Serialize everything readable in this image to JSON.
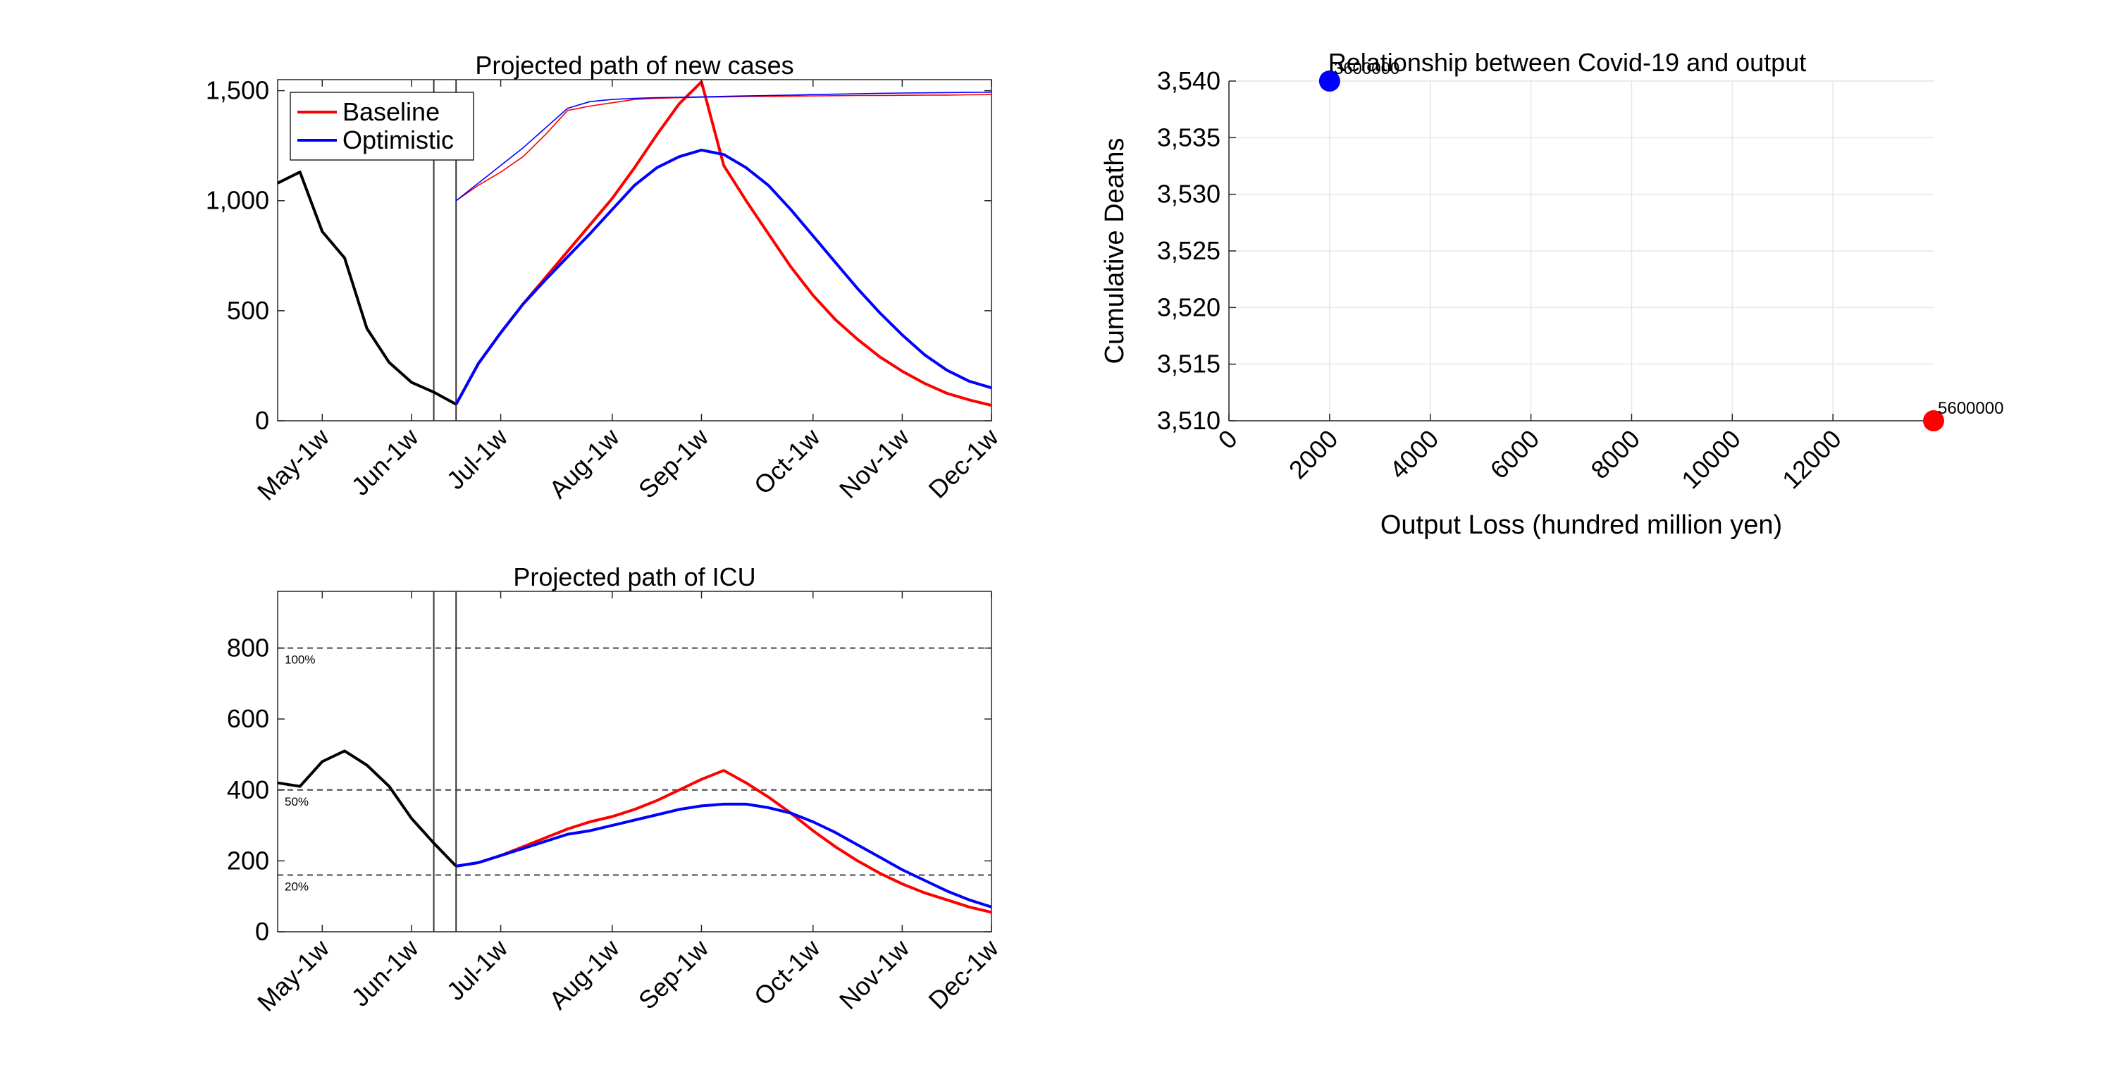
{
  "chart_data": [
    {
      "type": "line",
      "title": "Projected path of new cases",
      "xlabel": "",
      "ylabel": "",
      "x_ticks": [
        "May-1w",
        "Jun-1w",
        "Jul-1w",
        "Aug-1w",
        "Sep-1w",
        "Oct-1w",
        "Nov-1w",
        "Dec-1w"
      ],
      "x_tick_positions": [
        1,
        5,
        9,
        14,
        18,
        23,
        27,
        31
      ],
      "xlim": [
        -1,
        31
      ],
      "ylim": [
        0,
        1550
      ],
      "y_ticks": [
        0,
        500,
        1000,
        1500
      ],
      "y_tick_labels": [
        "0",
        "500",
        "1,000",
        "1,500"
      ],
      "vlines": [
        6,
        7
      ],
      "legend": {
        "placement": "top-left",
        "entries": [
          "Baseline",
          "Optimistic"
        ]
      },
      "series": [
        {
          "key": "observed",
          "color": "#000000",
          "x": [
            -1,
            0,
            1,
            2,
            3,
            4,
            5,
            6,
            7
          ],
          "y": [
            1080,
            1130,
            860,
            740,
            420,
            265,
            175,
            130,
            75
          ]
        },
        {
          "key": "baseline",
          "name": "Baseline",
          "color": "#ff0000",
          "x": [
            7,
            8,
            9,
            10,
            11,
            12,
            13,
            14,
            15,
            16,
            17,
            18,
            19,
            20,
            21,
            22,
            23,
            24,
            25,
            26,
            27,
            28,
            29,
            30,
            31
          ],
          "y": [
            75,
            260,
            400,
            530,
            650,
            770,
            890,
            1010,
            1150,
            1300,
            1440,
            1540,
            1160,
            1000,
            850,
            700,
            570,
            460,
            370,
            290,
            225,
            170,
            125,
            95,
            70
          ]
        },
        {
          "key": "optimistic",
          "name": "Optimistic",
          "color": "#0000ff",
          "x": [
            7,
            8,
            9,
            10,
            11,
            12,
            13,
            14,
            15,
            16,
            17,
            18,
            19,
            20,
            21,
            22,
            23,
            24,
            25,
            26,
            27,
            28,
            29,
            30,
            31
          ],
          "y": [
            75,
            260,
            400,
            530,
            640,
            745,
            850,
            960,
            1070,
            1150,
            1200,
            1230,
            1210,
            1150,
            1070,
            960,
            840,
            720,
            600,
            490,
            390,
            300,
            230,
            180,
            150
          ]
        },
        {
          "key": "baseline_thin",
          "color": "#ff0000",
          "thin": true,
          "x": [
            7,
            8,
            9,
            10,
            11,
            12,
            13,
            14,
            15,
            16,
            17,
            18,
            19,
            20,
            21,
            22,
            23,
            24,
            25,
            26,
            27,
            28,
            29,
            30,
            31
          ],
          "y": [
            1000,
            1070,
            1130,
            1200,
            1300,
            1410,
            1430,
            1445,
            1460,
            1465,
            1468,
            1470,
            1472,
            1473,
            1474,
            1475,
            1476,
            1477,
            1478,
            1478,
            1479,
            1480,
            1480,
            1481,
            1482
          ]
        },
        {
          "key": "optimistic_thin",
          "color": "#0000ff",
          "thin": true,
          "x": [
            7,
            8,
            9,
            10,
            11,
            12,
            13,
            14,
            15,
            16,
            17,
            18,
            19,
            20,
            21,
            22,
            23,
            24,
            25,
            26,
            27,
            28,
            29,
            30,
            31
          ],
          "y": [
            1000,
            1080,
            1160,
            1240,
            1330,
            1420,
            1450,
            1460,
            1465,
            1468,
            1470,
            1472,
            1474,
            1476,
            1478,
            1480,
            1482,
            1484,
            1486,
            1488,
            1489,
            1490,
            1491,
            1492,
            1493
          ]
        }
      ]
    },
    {
      "type": "scatter",
      "title": "Relationship between Covid-19 and output",
      "xlabel": "Output Loss (hundred million yen)",
      "ylabel": "Cumulative Deaths",
      "xlim": [
        0,
        14000
      ],
      "ylim": [
        3510,
        3540
      ],
      "x_ticks": [
        0,
        2000,
        4000,
        6000,
        8000,
        10000,
        12000
      ],
      "y_ticks": [
        3510,
        3515,
        3520,
        3525,
        3530,
        3535,
        3540
      ],
      "y_tick_labels": [
        "3,510",
        "3,515",
        "3,520",
        "3,525",
        "3,530",
        "3,535",
        "3,540"
      ],
      "grid": true,
      "points": [
        {
          "x": 2000,
          "y": 3540,
          "color": "#0000ff",
          "label": "3600000"
        },
        {
          "x": 14000,
          "y": 3510,
          "color": "#ff0000",
          "label": "5600000"
        }
      ]
    },
    {
      "type": "line",
      "title": "Projected path of ICU",
      "xlabel": "",
      "ylabel": "",
      "x_ticks": [
        "May-1w",
        "Jun-1w",
        "Jul-1w",
        "Aug-1w",
        "Sep-1w",
        "Oct-1w",
        "Nov-1w",
        "Dec-1w"
      ],
      "x_tick_positions": [
        1,
        5,
        9,
        14,
        18,
        23,
        27,
        31
      ],
      "xlim": [
        -1,
        31
      ],
      "ylim": [
        0,
        960
      ],
      "y_ticks": [
        0,
        200,
        400,
        600,
        800
      ],
      "y_tick_labels": [
        "0",
        "200",
        "400",
        "600",
        "800"
      ],
      "vlines": [
        6,
        7
      ],
      "hlines": [
        {
          "y": 800,
          "label": "100%"
        },
        {
          "y": 400,
          "label": "50%"
        },
        {
          "y": 160,
          "label": "20%"
        }
      ],
      "series": [
        {
          "key": "observed",
          "color": "#000000",
          "x": [
            -1,
            0,
            1,
            2,
            3,
            4,
            5,
            6,
            7
          ],
          "y": [
            420,
            410,
            480,
            510,
            470,
            410,
            320,
            250,
            185
          ]
        },
        {
          "key": "baseline",
          "color": "#ff0000",
          "x": [
            7,
            8,
            9,
            10,
            11,
            12,
            13,
            14,
            15,
            16,
            17,
            18,
            19,
            20,
            21,
            22,
            23,
            24,
            25,
            26,
            27,
            28,
            29,
            30,
            31
          ],
          "y": [
            185,
            195,
            215,
            240,
            265,
            290,
            310,
            325,
            345,
            370,
            400,
            430,
            455,
            420,
            380,
            335,
            285,
            240,
            200,
            165,
            135,
            110,
            90,
            70,
            55
          ]
        },
        {
          "key": "optimistic",
          "color": "#0000ff",
          "x": [
            7,
            8,
            9,
            10,
            11,
            12,
            13,
            14,
            15,
            16,
            17,
            18,
            19,
            20,
            21,
            22,
            23,
            24,
            25,
            26,
            27,
            28,
            29,
            30,
            31
          ],
          "y": [
            185,
            195,
            215,
            235,
            255,
            275,
            285,
            300,
            315,
            330,
            345,
            355,
            360,
            360,
            350,
            335,
            310,
            280,
            245,
            210,
            175,
            145,
            115,
            90,
            70
          ]
        }
      ]
    }
  ]
}
